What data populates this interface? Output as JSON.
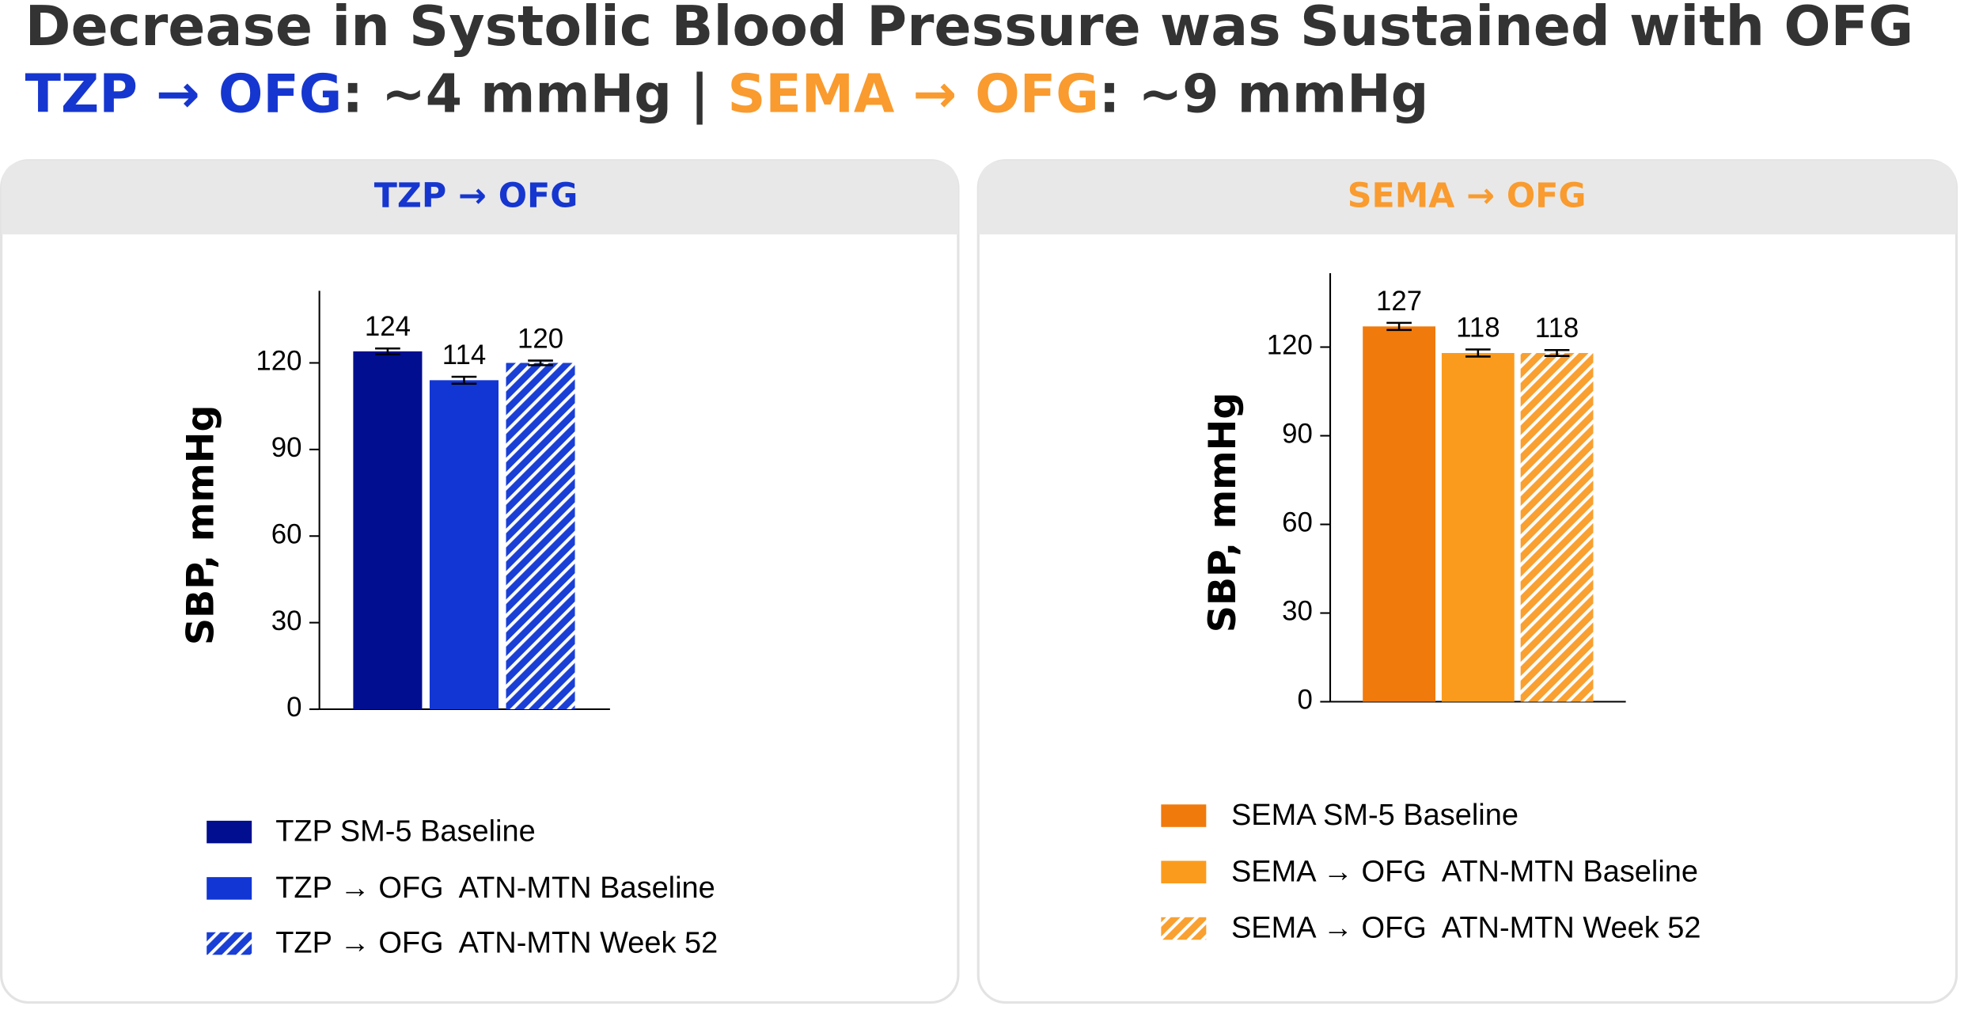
{
  "header": {
    "title": "Decrease in Systolic Blood Pressure was Sustained with OFG",
    "subtitle": [
      {
        "text": "TZP → OFG",
        "color": "#1636d0"
      },
      {
        "text": ": ~4 mmHg | ",
        "color": "#333333"
      },
      {
        "text": "SEMA → OFG",
        "color": "#f99b2e"
      },
      {
        "text": ": ~9 mmHg",
        "color": "#333333"
      }
    ]
  },
  "chart_data": [
    {
      "type": "bar",
      "title": "TZP → OFG",
      "title_color": "#1636d0",
      "ylabel": "SBP, mmHg",
      "ylim": [
        0,
        145
      ],
      "yticks": [
        0,
        30,
        60,
        90,
        120
      ],
      "series": [
        {
          "name": "TZP SM-5 Baseline",
          "color": "#000e8f",
          "hatch": false,
          "values": [
            124
          ],
          "errors": [
            1
          ]
        },
        {
          "name": "TZP → OFG  ATN-MTN Baseline",
          "color": "#1236d4",
          "hatch": false,
          "values": [
            114
          ],
          "errors": [
            1.2
          ]
        },
        {
          "name": "TZP → OFG  ATN-MTN Week 52",
          "color": "#1a3fd6",
          "hatch": true,
          "values": [
            120
          ],
          "errors": [
            0.8
          ]
        }
      ]
    },
    {
      "type": "bar",
      "title": "SEMA → OFG",
      "title_color": "#f99b2e",
      "ylabel": "SBP, mmHg",
      "ylim": [
        0,
        145
      ],
      "yticks": [
        0,
        30,
        60,
        90,
        120
      ],
      "series": [
        {
          "name": "SEMA SM-5 Baseline",
          "color": "#f07a0c",
          "hatch": false,
          "values": [
            127
          ],
          "errors": [
            1.2
          ]
        },
        {
          "name": "SEMA → OFG  ATN-MTN Baseline",
          "color": "#fb9b1e",
          "hatch": false,
          "values": [
            118
          ],
          "errors": [
            1.2
          ]
        },
        {
          "name": "SEMA → OFG  ATN-MTN Week 52",
          "color": "#f9a030",
          "hatch": true,
          "values": [
            118
          ],
          "errors": [
            1
          ]
        }
      ]
    }
  ]
}
